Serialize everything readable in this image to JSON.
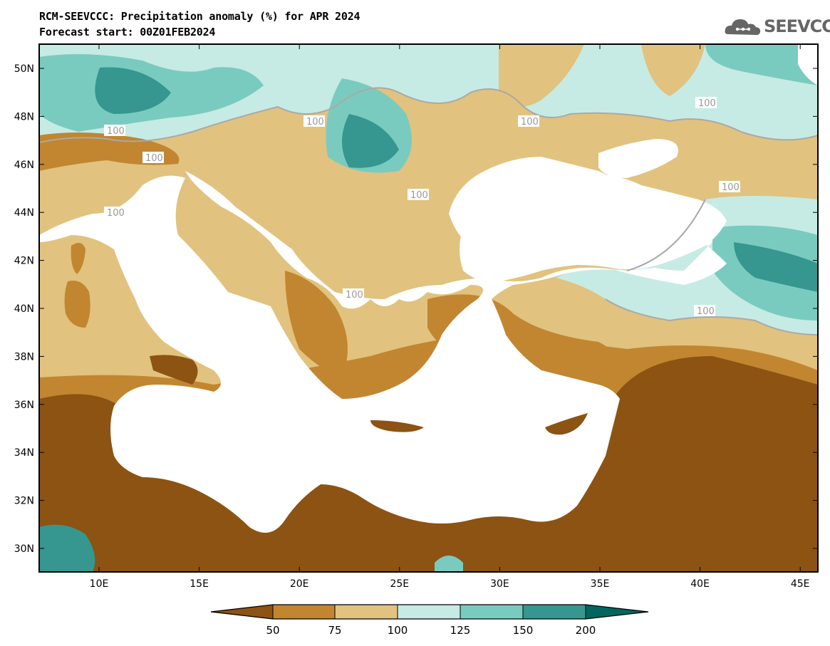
{
  "header": {
    "title": "RCM-SEEVCCC: Precipitation anomaly (%) for APR 2024",
    "subtitle": "Forecast start: 00Z01FEB2024"
  },
  "logo": {
    "text": "SEEVCCC",
    "icon": "cloud-logo-icon"
  },
  "axes": {
    "lat_labels": [
      "50N",
      "48N",
      "46N",
      "44N",
      "42N",
      "40N",
      "38N",
      "36N",
      "34N",
      "32N",
      "30N"
    ],
    "lon_labels": [
      "10E",
      "15E",
      "20E",
      "25E",
      "30E",
      "35E",
      "40E",
      "45E"
    ]
  },
  "contour_labels": [
    "100",
    "100",
    "100",
    "100",
    "100",
    "100",
    "100",
    "100",
    "100",
    "100"
  ],
  "colorbar": {
    "ticks": [
      "50",
      "75",
      "100",
      "125",
      "150",
      "200"
    ],
    "colors": [
      "#8c5312",
      "#c1862f",
      "#e1c27f",
      "#c6ebe4",
      "#7acbbf",
      "#35978f",
      "#01665e"
    ]
  }
}
